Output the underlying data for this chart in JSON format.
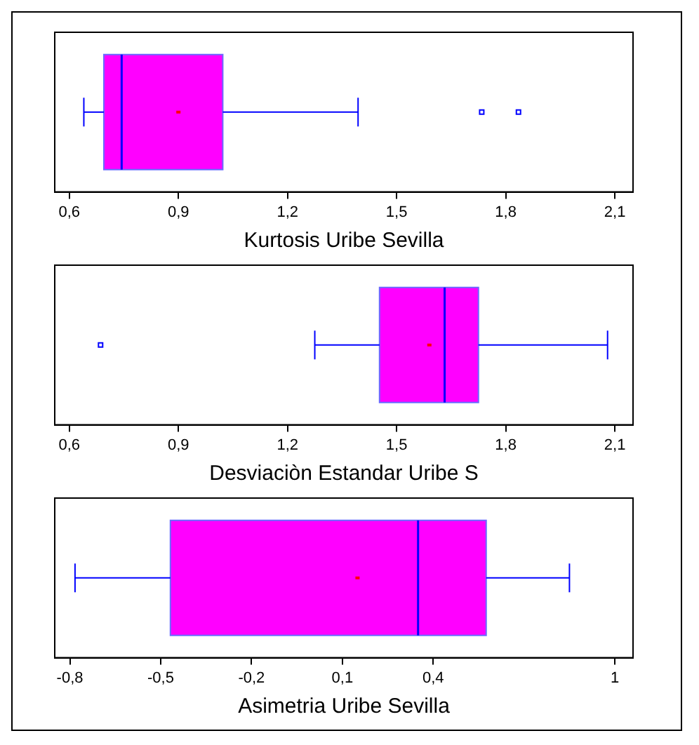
{
  "chart_data": [
    {
      "type": "box",
      "orientation": "horizontal",
      "categories": [
        null
      ],
      "color": "#ff00ff",
      "xlabel": "Kurtosis Uribe Sevilla",
      "xlim": [
        0.56,
        2.15
      ],
      "xticks": [
        {
          "value": 0.6,
          "label": "0,6"
        },
        {
          "value": 0.9,
          "label": "0,9"
        },
        {
          "value": 1.2,
          "label": "1,2"
        },
        {
          "value": 1.5,
          "label": "1,5"
        },
        {
          "value": 1.8,
          "label": "1,8"
        },
        {
          "value": 2.1,
          "label": "2,1"
        }
      ],
      "tick_labels": "x",
      "grid": false,
      "boxes": [
        {
          "low": 0.64,
          "q1": 0.695,
          "median": 0.744,
          "q3": 1.022,
          "high": 1.394,
          "mean": 0.9,
          "outliers": [
            1.734,
            1.835
          ]
        }
      ]
    },
    {
      "type": "box",
      "orientation": "horizontal",
      "categories": [
        null
      ],
      "color": "#ff00ff",
      "xlabel": "Desviaciòn Estandar Uribe S",
      "xlim": [
        0.56,
        2.15
      ],
      "xticks": [
        {
          "value": 0.6,
          "label": "0,6"
        },
        {
          "value": 0.9,
          "label": "0,9"
        },
        {
          "value": 1.2,
          "label": "1,2"
        },
        {
          "value": 1.5,
          "label": "1,5"
        },
        {
          "value": 1.8,
          "label": "1,8"
        },
        {
          "value": 2.1,
          "label": "2,1"
        }
      ],
      "tick_labels": "x",
      "grid": false,
      "boxes": [
        {
          "low": 1.275,
          "q1": 1.453,
          "median": 1.632,
          "q3": 1.725,
          "high": 2.08,
          "mean": 1.59,
          "outliers": [
            0.686
          ]
        }
      ]
    },
    {
      "type": "box",
      "orientation": "horizontal",
      "categories": [
        null
      ],
      "color": "#ff00ff",
      "xlabel": "Asimetria Uribe Sevilla",
      "xlim": [
        -0.85,
        1.06
      ],
      "xticks": [
        {
          "value": -0.8,
          "label": "-0,8"
        },
        {
          "value": -0.5,
          "label": "-0,5"
        },
        {
          "value": -0.2,
          "label": "-0,2"
        },
        {
          "value": 0.1,
          "label": "0,1"
        },
        {
          "value": 0.4,
          "label": "0,4"
        },
        1
      ],
      "tick_labels": "x",
      "grid": false,
      "boxes": [
        {
          "low": -0.783,
          "q1": -0.468,
          "median": 0.35,
          "q3": 0.575,
          "high": 0.85,
          "mean": 0.15
        }
      ]
    }
  ]
}
